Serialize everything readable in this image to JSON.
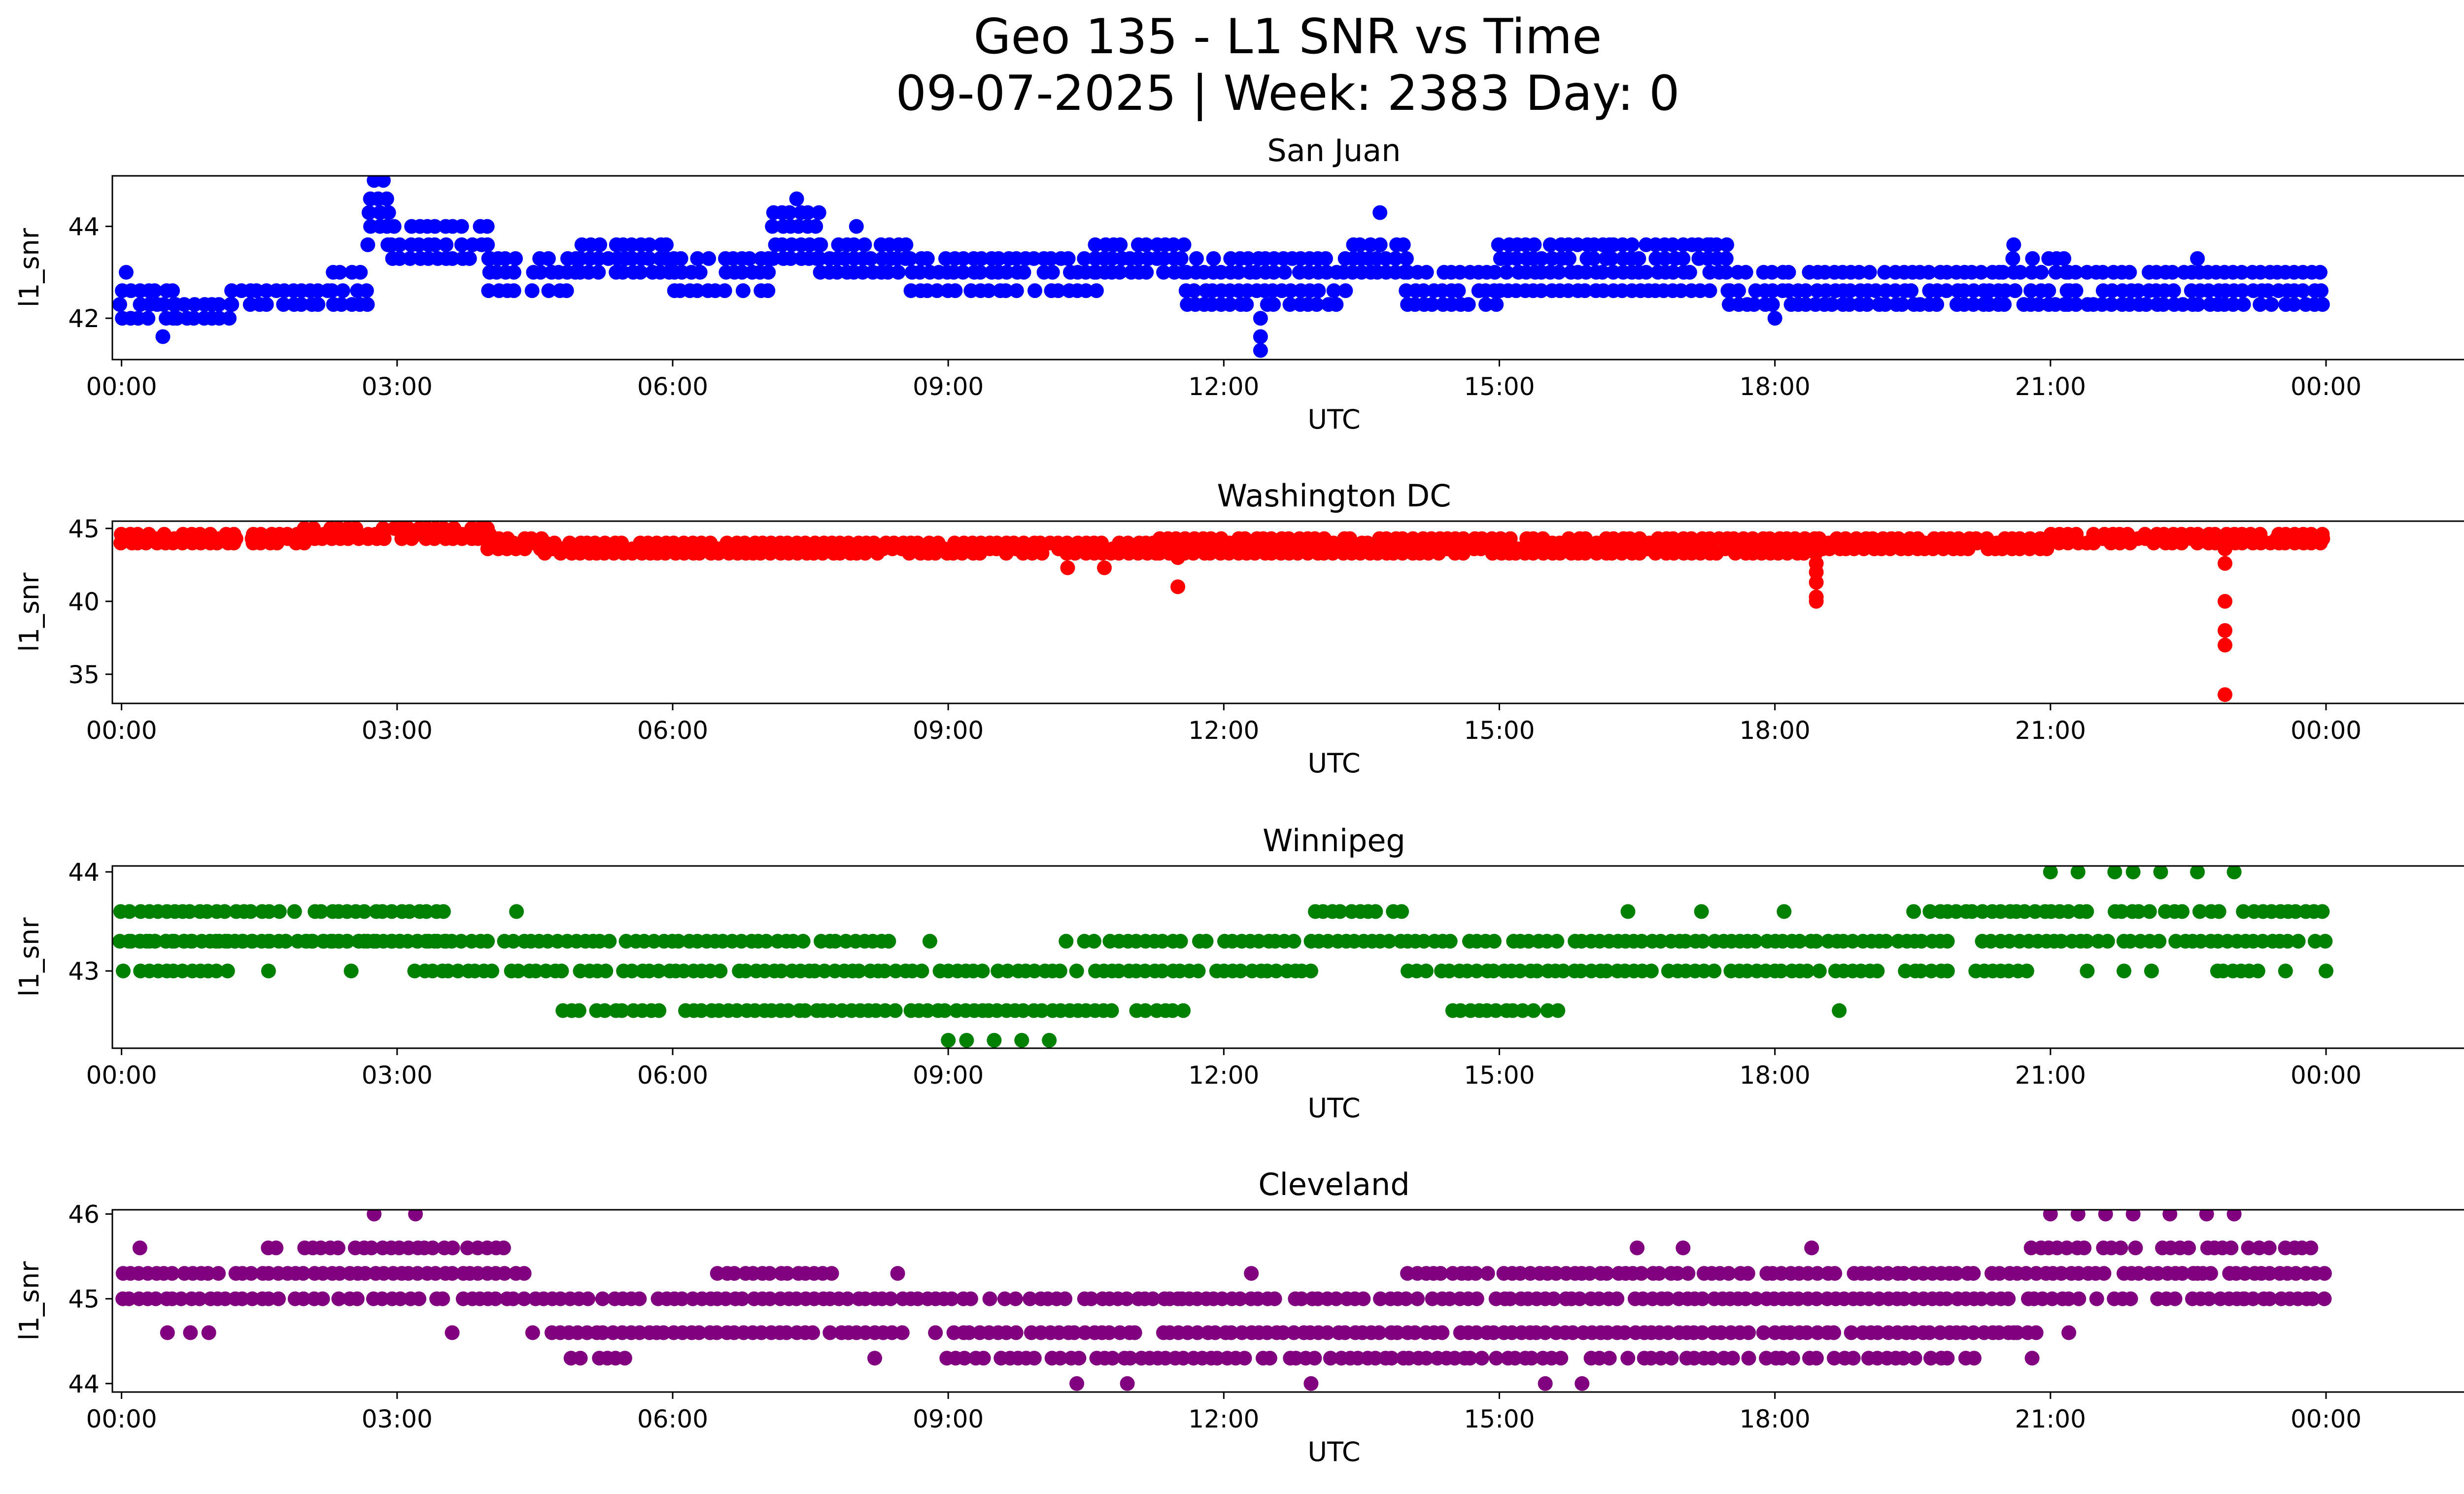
{
  "title_line1": "Geo 135 - L1 SNR vs Time",
  "title_line2": "09-07-2025 | Week: 2383 Day: 0",
  "chart_data": [
    {
      "type": "scatter",
      "title": "San Juan",
      "xlabel": "UTC",
      "ylabel": "l1_snr",
      "color": "#0000ff",
      "xlim": [
        -0.1,
        26.5
      ],
      "ylim": [
        41.1,
        45.1
      ],
      "xticks": [
        0,
        3,
        6,
        9,
        12,
        15,
        18,
        21,
        24
      ],
      "xtick_labels": [
        "00:00",
        "03:00",
        "06:00",
        "09:00",
        "12:00",
        "15:00",
        "18:00",
        "21:00",
        "00:00"
      ],
      "yticks": [
        42,
        44
      ],
      "ytick_labels": [
        "42",
        "44"
      ],
      "levels": [
        41.3,
        41.6,
        42.0,
        42.3,
        42.6,
        43.0,
        43.3,
        43.6,
        44.0,
        44.3,
        44.6,
        45.0
      ],
      "segments": [
        {
          "t": [
            0.0,
            0.6
          ],
          "levels": [
            42.0,
            42.3,
            42.6
          ]
        },
        {
          "t": [
            0.6,
            1.2
          ],
          "levels": [
            42.0,
            42.3
          ]
        },
        {
          "t": [
            1.2,
            2.3
          ],
          "levels": [
            42.3,
            42.6
          ]
        },
        {
          "t": [
            2.3,
            2.7
          ],
          "levels": [
            42.3,
            42.6,
            43.0
          ]
        },
        {
          "t": [
            2.7,
            2.95
          ],
          "levels": [
            43.6,
            44.0,
            44.3,
            44.6
          ]
        },
        {
          "t": [
            2.95,
            4.0
          ],
          "levels": [
            43.3,
            43.6,
            44.0
          ]
        },
        {
          "t": [
            4.0,
            5.0
          ],
          "levels": [
            42.6,
            43.0,
            43.3
          ]
        },
        {
          "t": [
            5.0,
            6.0
          ],
          "levels": [
            43.0,
            43.3,
            43.6
          ]
        },
        {
          "t": [
            6.0,
            7.1
          ],
          "levels": [
            42.6,
            43.0,
            43.3
          ]
        },
        {
          "t": [
            7.1,
            7.6
          ],
          "levels": [
            43.3,
            43.6,
            44.0,
            44.3
          ]
        },
        {
          "t": [
            7.6,
            8.6
          ],
          "levels": [
            43.0,
            43.3,
            43.6
          ]
        },
        {
          "t": [
            8.6,
            10.6
          ],
          "levels": [
            42.6,
            43.0,
            43.3
          ]
        },
        {
          "t": [
            10.6,
            11.6
          ],
          "levels": [
            43.0,
            43.3,
            43.6
          ]
        },
        {
          "t": [
            11.6,
            13.4
          ],
          "levels": [
            42.3,
            42.6,
            43.0,
            43.3
          ]
        },
        {
          "t": [
            13.4,
            14.0
          ],
          "levels": [
            43.0,
            43.3,
            43.6
          ]
        },
        {
          "t": [
            14.0,
            15.0
          ],
          "levels": [
            42.3,
            42.6,
            43.0
          ]
        },
        {
          "t": [
            15.0,
            17.5
          ],
          "levels": [
            42.6,
            43.0,
            43.3,
            43.6
          ]
        },
        {
          "t": [
            17.5,
            20.5
          ],
          "levels": [
            42.3,
            42.6,
            43.0
          ]
        },
        {
          "t": [
            20.5,
            21.2
          ],
          "levels": [
            42.3,
            42.6,
            43.0,
            43.3
          ]
        },
        {
          "t": [
            21.2,
            24.0
          ],
          "levels": [
            42.3,
            42.6,
            43.0
          ]
        }
      ],
      "outliers": [
        {
          "t": 0.05,
          "v": 43.0
        },
        {
          "t": 0.45,
          "v": 41.6
        },
        {
          "t": 2.75,
          "v": 45.0
        },
        {
          "t": 2.85,
          "v": 45.0
        },
        {
          "t": 7.35,
          "v": 44.6
        },
        {
          "t": 8.0,
          "v": 44.0
        },
        {
          "t": 12.4,
          "v": 41.3
        },
        {
          "t": 12.4,
          "v": 41.6
        },
        {
          "t": 12.4,
          "v": 42.0
        },
        {
          "t": 13.7,
          "v": 44.3
        },
        {
          "t": 16.2,
          "v": 43.6
        },
        {
          "t": 17.3,
          "v": 43.6
        },
        {
          "t": 20.6,
          "v": 43.6
        },
        {
          "t": 18.0,
          "v": 42.0
        },
        {
          "t": 22.6,
          "v": 43.3
        }
      ]
    },
    {
      "type": "scatter",
      "title": "Washington DC",
      "xlabel": "UTC",
      "ylabel": "l1_snr",
      "color": "#ff0000",
      "xlim": [
        -0.1,
        26.5
      ],
      "ylim": [
        33.0,
        45.5
      ],
      "xticks": [
        0,
        3,
        6,
        9,
        12,
        15,
        18,
        21,
        24
      ],
      "xtick_labels": [
        "00:00",
        "03:00",
        "06:00",
        "09:00",
        "12:00",
        "15:00",
        "18:00",
        "21:00",
        "00:00"
      ],
      "yticks": [
        35,
        40,
        45
      ],
      "ytick_labels": [
        "35",
        "40",
        "45"
      ],
      "levels": [
        33.5,
        37.0,
        38.0,
        40.0,
        41.0,
        42.3,
        42.6,
        43.0,
        43.3,
        43.6,
        44.0,
        44.3,
        44.6,
        45.0
      ],
      "segments": [
        {
          "t": [
            0.0,
            2.0
          ],
          "levels": [
            44.0,
            44.3,
            44.6
          ]
        },
        {
          "t": [
            2.0,
            4.0
          ],
          "levels": [
            44.3,
            44.6,
            45.0
          ]
        },
        {
          "t": [
            4.0,
            4.6
          ],
          "levels": [
            43.6,
            44.0,
            44.3
          ]
        },
        {
          "t": [
            4.6,
            11.3
          ],
          "levels": [
            43.3,
            43.6,
            44.0
          ]
        },
        {
          "t": [
            11.3,
            18.5
          ],
          "levels": [
            43.3,
            43.6,
            44.0,
            44.3
          ]
        },
        {
          "t": [
            18.5,
            21.0
          ],
          "levels": [
            43.6,
            44.0,
            44.3
          ]
        },
        {
          "t": [
            21.0,
            24.0
          ],
          "levels": [
            44.0,
            44.3,
            44.6
          ]
        }
      ],
      "outliers": [
        {
          "t": 10.3,
          "v": 42.3
        },
        {
          "t": 10.7,
          "v": 42.3
        },
        {
          "t": 11.5,
          "v": 41.0
        },
        {
          "t": 11.5,
          "v": 43.0
        },
        {
          "t": 18.45,
          "v": 40.0
        },
        {
          "t": 18.45,
          "v": 40.3
        },
        {
          "t": 18.45,
          "v": 41.3
        },
        {
          "t": 18.45,
          "v": 42.0
        },
        {
          "t": 18.45,
          "v": 42.6
        },
        {
          "t": 22.9,
          "v": 33.6
        },
        {
          "t": 22.9,
          "v": 37.0
        },
        {
          "t": 22.9,
          "v": 38.0
        },
        {
          "t": 22.9,
          "v": 40.0
        },
        {
          "t": 22.9,
          "v": 42.6
        },
        {
          "t": 22.9,
          "v": 43.6
        }
      ]
    },
    {
      "type": "scatter",
      "title": "Winnipeg",
      "xlabel": "UTC",
      "ylabel": "l1_snr",
      "color": "#008000",
      "xlim": [
        -0.1,
        26.5
      ],
      "ylim": [
        42.22,
        44.06
      ],
      "xticks": [
        0,
        3,
        6,
        9,
        12,
        15,
        18,
        21,
        24
      ],
      "xtick_labels": [
        "00:00",
        "03:00",
        "06:00",
        "09:00",
        "12:00",
        "15:00",
        "18:00",
        "21:00",
        "00:00"
      ],
      "yticks": [
        43,
        44
      ],
      "ytick_labels": [
        "43",
        "44"
      ],
      "levels": [
        42.3,
        42.6,
        43.0,
        43.3,
        43.6,
        44.0
      ],
      "segments": [
        {
          "t": [
            0.0,
            3.6
          ],
          "levels": [
            43.3,
            43.6
          ]
        },
        {
          "t": [
            0.0,
            1.2
          ],
          "levels": [
            43.0
          ]
        },
        {
          "t": [
            3.1,
            10.3
          ],
          "levels": [
            43.0
          ]
        },
        {
          "t": [
            0.0,
            8.4
          ],
          "levels": [
            43.3
          ]
        },
        {
          "t": [
            4.8,
            11.6
          ],
          "levels": [
            42.6
          ]
        },
        {
          "t": [
            10.3,
            24.0
          ],
          "levels": [
            43.3
          ]
        },
        {
          "t": [
            10.3,
            13.0
          ],
          "levels": [
            43.0
          ]
        },
        {
          "t": [
            13.0,
            14.0
          ],
          "levels": [
            43.6
          ]
        },
        {
          "t": [
            14.0,
            20.8
          ],
          "levels": [
            43.0
          ]
        },
        {
          "t": [
            14.5,
            15.7
          ],
          "levels": [
            42.6
          ]
        },
        {
          "t": [
            19.5,
            24.0
          ],
          "levels": [
            43.6
          ]
        },
        {
          "t": [
            22.8,
            23.6
          ],
          "levels": [
            43.0
          ]
        }
      ],
      "outliers": [
        {
          "t": 9.0,
          "v": 42.3
        },
        {
          "t": 9.2,
          "v": 42.3
        },
        {
          "t": 9.5,
          "v": 42.3
        },
        {
          "t": 9.8,
          "v": 42.3
        },
        {
          "t": 10.1,
          "v": 42.3
        },
        {
          "t": 4.3,
          "v": 43.6
        },
        {
          "t": 1.6,
          "v": 43.0
        },
        {
          "t": 2.5,
          "v": 43.0
        },
        {
          "t": 8.8,
          "v": 43.3
        },
        {
          "t": 18.7,
          "v": 42.6
        },
        {
          "t": 21.0,
          "v": 44.0
        },
        {
          "t": 21.3,
          "v": 44.0
        },
        {
          "t": 21.7,
          "v": 44.0
        },
        {
          "t": 21.9,
          "v": 44.0
        },
        {
          "t": 22.2,
          "v": 44.0
        },
        {
          "t": 22.6,
          "v": 44.0
        },
        {
          "t": 23.0,
          "v": 44.0
        },
        {
          "t": 24.0,
          "v": 43.0
        },
        {
          "t": 21.4,
          "v": 43.0
        },
        {
          "t": 21.8,
          "v": 43.0
        },
        {
          "t": 22.1,
          "v": 43.0
        },
        {
          "t": 16.4,
          "v": 43.6
        },
        {
          "t": 17.2,
          "v": 43.6
        },
        {
          "t": 18.1,
          "v": 43.6
        }
      ]
    },
    {
      "type": "scatter",
      "title": "Cleveland",
      "xlabel": "UTC",
      "ylabel": "l1_snr",
      "color": "#800080",
      "xlim": [
        -0.1,
        26.5
      ],
      "ylim": [
        43.9,
        46.05
      ],
      "xticks": [
        0,
        3,
        6,
        9,
        12,
        15,
        18,
        21,
        24
      ],
      "xtick_labels": [
        "00:00",
        "03:00",
        "06:00",
        "09:00",
        "12:00",
        "15:00",
        "18:00",
        "21:00",
        "00:00"
      ],
      "yticks": [
        44,
        45,
        46
      ],
      "ytick_labels": [
        "44",
        "45",
        "46"
      ],
      "levels": [
        44.0,
        44.3,
        44.6,
        45.0,
        45.3,
        45.6,
        46.0
      ],
      "segments": [
        {
          "t": [
            0.0,
            4.4
          ],
          "levels": [
            45.0,
            45.3
          ]
        },
        {
          "t": [
            1.6,
            4.2
          ],
          "levels": [
            45.6
          ]
        },
        {
          "t": [
            4.4,
            20.9
          ],
          "levels": [
            44.6
          ]
        },
        {
          "t": [
            4.4,
            24.0
          ],
          "levels": [
            45.0
          ]
        },
        {
          "t": [
            4.9,
            5.5
          ],
          "levels": [
            44.3
          ]
        },
        {
          "t": [
            9.0,
            15.7
          ],
          "levels": [
            44.3
          ]
        },
        {
          "t": [
            16.0,
            20.2
          ],
          "levels": [
            44.3
          ]
        },
        {
          "t": [
            6.5,
            7.8
          ],
          "levels": [
            45.3
          ]
        },
        {
          "t": [
            14.0,
            24.0
          ],
          "levels": [
            45.3
          ]
        },
        {
          "t": [
            20.8,
            24.0
          ],
          "levels": [
            45.6
          ]
        }
      ],
      "outliers": [
        {
          "t": 0.2,
          "v": 45.6
        },
        {
          "t": 0.5,
          "v": 44.6
        },
        {
          "t": 0.75,
          "v": 44.6
        },
        {
          "t": 0.95,
          "v": 44.6
        },
        {
          "t": 2.75,
          "v": 46.0
        },
        {
          "t": 3.2,
          "v": 46.0
        },
        {
          "t": 3.6,
          "v": 44.6
        },
        {
          "t": 8.2,
          "v": 44.3
        },
        {
          "t": 8.45,
          "v": 45.3
        },
        {
          "t": 10.4,
          "v": 44.0
        },
        {
          "t": 10.95,
          "v": 44.0
        },
        {
          "t": 12.95,
          "v": 44.0
        },
        {
          "t": 15.5,
          "v": 44.0
        },
        {
          "t": 15.9,
          "v": 44.0
        },
        {
          "t": 12.3,
          "v": 45.3
        },
        {
          "t": 11.5,
          "v": 45.0
        },
        {
          "t": 20.6,
          "v": 44.6
        },
        {
          "t": 20.8,
          "v": 44.3
        },
        {
          "t": 21.0,
          "v": 46.0
        },
        {
          "t": 21.3,
          "v": 46.0
        },
        {
          "t": 21.6,
          "v": 46.0
        },
        {
          "t": 21.9,
          "v": 46.0
        },
        {
          "t": 22.3,
          "v": 46.0
        },
        {
          "t": 22.7,
          "v": 46.0
        },
        {
          "t": 23.0,
          "v": 46.0
        },
        {
          "t": 22.6,
          "v": 45.3
        },
        {
          "t": 23.1,
          "v": 45.0
        },
        {
          "t": 21.2,
          "v": 44.6
        },
        {
          "t": 16.5,
          "v": 45.6
        },
        {
          "t": 17.0,
          "v": 45.6
        },
        {
          "t": 18.4,
          "v": 45.6
        }
      ]
    }
  ]
}
